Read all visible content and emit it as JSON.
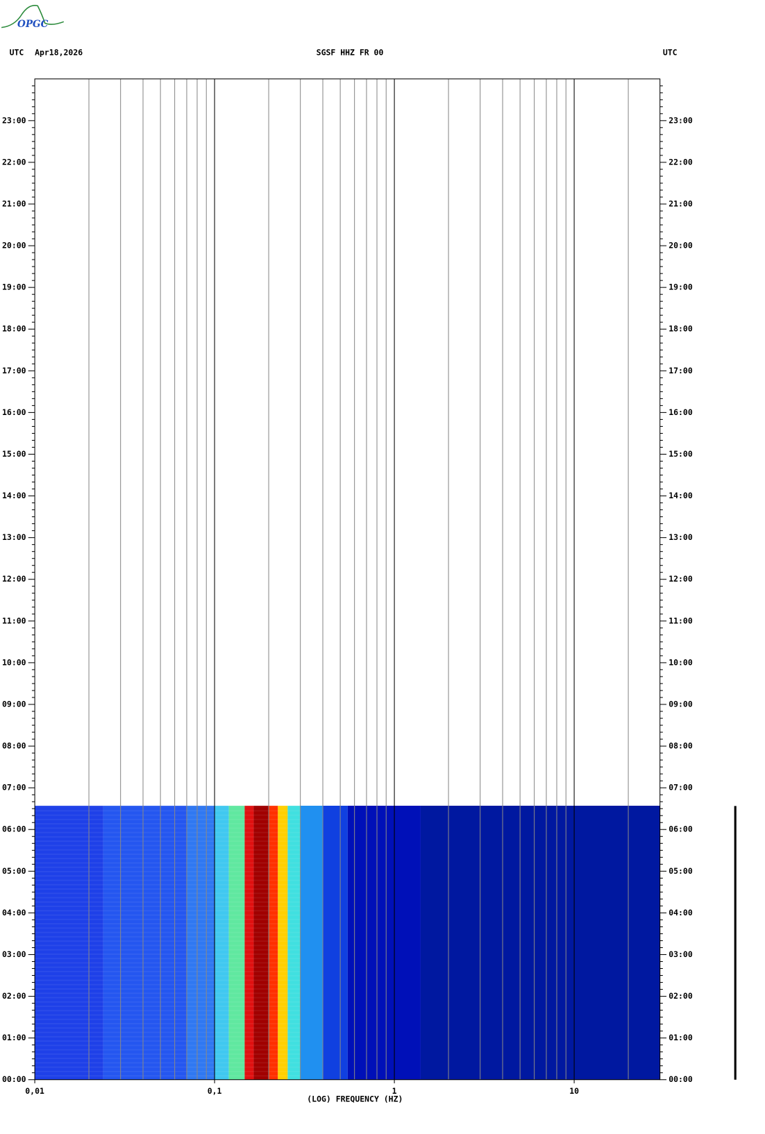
{
  "logo": "OPGC",
  "chart_data": {
    "type": "spectrogram",
    "title": "SGSF HHZ FR 00",
    "date": "Apr18,2026",
    "left_label": "UTC",
    "right_label": "UTC",
    "xlabel": "(LOG) FREQUENCY (HZ)",
    "log_x": true,
    "xlim": [
      0.01,
      30
    ],
    "xticks": [
      {
        "value": 0.01,
        "label": "0,01"
      },
      {
        "value": 0.1,
        "label": "0,1"
      },
      1,
      10
    ],
    "xgrid": [
      0.02,
      0.03,
      0.04,
      0.05,
      0.06,
      0.07,
      0.08,
      0.09,
      0.1,
      0.2,
      0.3,
      0.4,
      0.5,
      0.6,
      0.7,
      0.8,
      0.9,
      1,
      2,
      3,
      4,
      5,
      6,
      7,
      8,
      9,
      10,
      20
    ],
    "ylim": [
      0,
      24
    ],
    "yticks": [
      {
        "value": 0,
        "label": "00:00"
      },
      {
        "value": 1,
        "label": "01:00"
      },
      {
        "value": 2,
        "label": "02:00"
      },
      {
        "value": 3,
        "label": "03:00"
      },
      {
        "value": 4,
        "label": "04:00"
      },
      {
        "value": 5,
        "label": "05:00"
      },
      {
        "value": 6,
        "label": "06:00"
      },
      {
        "value": 7,
        "label": "07:00"
      },
      {
        "value": 8,
        "label": "08:00"
      },
      {
        "value": 9,
        "label": "09:00"
      },
      {
        "value": 10,
        "label": "10:00"
      },
      {
        "value": 11,
        "label": "11:00"
      },
      {
        "value": 12,
        "label": "12:00"
      },
      {
        "value": 13,
        "label": "13:00"
      },
      {
        "value": 14,
        "label": "14:00"
      },
      {
        "value": 15,
        "label": "15:00"
      },
      {
        "value": 16,
        "label": "16:00"
      },
      {
        "value": 17,
        "label": "17:00"
      },
      {
        "value": 18,
        "label": "18:00"
      },
      {
        "value": 19,
        "label": "19:00"
      },
      {
        "value": 20,
        "label": "20:00"
      },
      {
        "value": 21,
        "label": "21:00"
      },
      {
        "value": 22,
        "label": "22:00"
      },
      {
        "value": 23,
        "label": "23:00"
      }
    ],
    "time_range": [
      0,
      6.57
    ],
    "bands": [
      {
        "from": 0.01,
        "to": 0.024,
        "color": "#1e40e8"
      },
      {
        "from": 0.024,
        "to": 0.07,
        "color": "#2456f0"
      },
      {
        "from": 0.07,
        "to": 0.1,
        "color": "#2f78f2"
      },
      {
        "from": 0.1,
        "to": 0.12,
        "color": "#40c8f0"
      },
      {
        "from": 0.12,
        "to": 0.147,
        "color": "#60e8a0"
      },
      {
        "from": 0.147,
        "to": 0.165,
        "color": "#e01010"
      },
      {
        "from": 0.165,
        "to": 0.2,
        "color": "#a00000"
      },
      {
        "from": 0.2,
        "to": 0.225,
        "color": "#ff3000"
      },
      {
        "from": 0.225,
        "to": 0.255,
        "color": "#ffd000"
      },
      {
        "from": 0.255,
        "to": 0.3,
        "color": "#40e0e0"
      },
      {
        "from": 0.3,
        "to": 0.4,
        "color": "#2090f0"
      },
      {
        "from": 0.4,
        "to": 0.55,
        "color": "#1040e0"
      },
      {
        "from": 0.55,
        "to": 1.4,
        "color": "#0010b8"
      },
      {
        "from": 1.4,
        "to": 30,
        "color": "#0018a0"
      }
    ]
  }
}
